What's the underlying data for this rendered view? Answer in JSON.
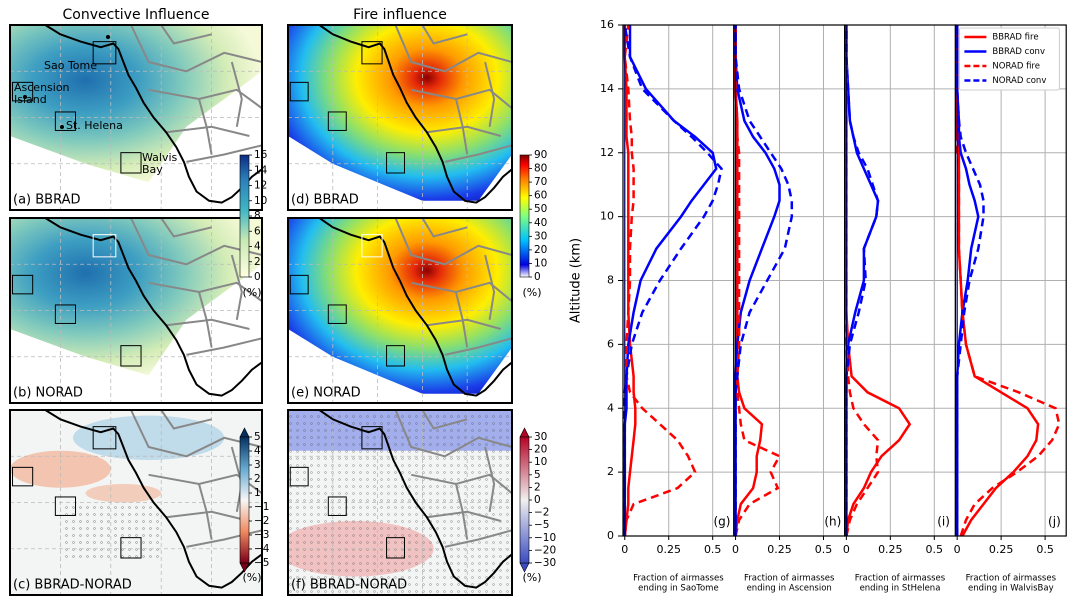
{
  "maps": {
    "column_titles": [
      "Convective Influence",
      "Fire influence"
    ],
    "panels": [
      {
        "label": "(a) BBRAD"
      },
      {
        "label": "(d) BBRAD"
      },
      {
        "label": "(b) NORAD"
      },
      {
        "label": "(e) NORAD"
      },
      {
        "label": "(c) BBRAD-NORAD"
      },
      {
        "label": "(f) BBRAD-NORAD"
      }
    ],
    "places": [
      {
        "lines": [
          "Sao Tome"
        ]
      },
      {
        "lines": [
          "Ascension",
          "Island"
        ]
      },
      {
        "lines": [
          "St. Helena"
        ]
      },
      {
        "lines": [
          "Walvis",
          "Bay"
        ]
      }
    ],
    "colorbars": [
      {
        "ticks": [
          0,
          2,
          4,
          6,
          8,
          10,
          12,
          14,
          16
        ],
        "unit": "(%)"
      },
      {
        "ticks": [
          0,
          10,
          20,
          30,
          40,
          50,
          60,
          70,
          80,
          90
        ],
        "unit": "(%)"
      },
      {
        "ticks": [
          {
            "value": -5,
            "label": "−5"
          },
          {
            "value": -4,
            "label": "−4"
          },
          {
            "value": -3,
            "label": "−3"
          },
          {
            "value": -2,
            "label": "−2"
          },
          {
            "value": -1,
            "label": "−1"
          },
          1,
          2,
          3,
          4,
          5
        ],
        "unit": "(%)"
      },
      {
        "ticks": [
          {
            "value": -30,
            "label": "−30"
          },
          {
            "value": -20,
            "label": "−20"
          },
          {
            "value": -10,
            "label": "−10"
          },
          {
            "value": -5,
            "label": "−5"
          },
          {
            "value": -2,
            "label": "−2"
          },
          0,
          2,
          5,
          10,
          20,
          30
        ],
        "unit": "(%)"
      }
    ]
  },
  "chart_data": {
    "type": "line",
    "ylabel": "Altitude (km)",
    "ylim": [
      0,
      16
    ],
    "yticks": [
      0,
      2,
      4,
      6,
      8,
      10,
      12,
      14,
      16
    ],
    "xlim": [
      -0.01,
      0.62
    ],
    "xticks": [
      0,
      0.25,
      0.5
    ],
    "grid": true,
    "legend": "upper right",
    "altitudes": [
      0,
      0.5,
      1,
      1.5,
      2,
      2.5,
      3,
      3.5,
      4,
      4.5,
      5,
      6,
      7,
      8,
      9,
      10,
      10.5,
      11,
      11.5,
      12,
      12.5,
      13,
      14,
      15,
      16
    ],
    "series": [
      {
        "name": "BBRAD fire",
        "color": "#ff0000",
        "dash": false
      },
      {
        "name": "BBRAD conv",
        "color": "#0000ff",
        "dash": false
      },
      {
        "name": "NORAD fire",
        "color": "#ff0000",
        "dash": true
      },
      {
        "name": "NORAD conv",
        "color": "#0000ff",
        "dash": true
      }
    ],
    "panels": [
      {
        "letter": "(g)",
        "xlabel": [
          "Fraction of airmasses",
          "ending in SaoTome"
        ],
        "series": [
          {
            "values": [
              0,
              0.01,
              0.02,
              0.02,
              0.03,
              0.04,
              0.05,
              0.06,
              0.06,
              0.05,
              0.05,
              0.03,
              0.02,
              0.02,
              0.02,
              0.02,
              0.02,
              0.02,
              0.02,
              0.02,
              0.01,
              0.01,
              0.01,
              0,
              0
            ]
          },
          {
            "values": [
              0,
              0,
              0,
              0,
              0,
              0,
              0,
              0,
              0.01,
              0.01,
              0.01,
              0.02,
              0.05,
              0.09,
              0.18,
              0.32,
              0.38,
              0.45,
              0.52,
              0.5,
              0.4,
              0.28,
              0.12,
              0.03,
              0.03
            ]
          },
          {
            "values": [
              0,
              0.01,
              0.05,
              0.3,
              0.4,
              0.36,
              0.3,
              0.2,
              0.1,
              0.03,
              0.01,
              0.01,
              0.02,
              0.03,
              0.03,
              0.04,
              0.05,
              0.05,
              0.05,
              0.04,
              0.04,
              0.03,
              0.02,
              0,
              0.02
            ]
          },
          {
            "values": [
              0,
              0,
              0,
              0,
              0,
              0,
              0,
              0,
              0,
              0,
              0.01,
              0.04,
              0.1,
              0.2,
              0.32,
              0.45,
              0.5,
              0.53,
              0.55,
              0.47,
              0.38,
              0.28,
              0.1,
              0.03,
              0
            ]
          }
        ]
      },
      {
        "letter": "(h)",
        "xlabel": [
          "Fraction of airmasses",
          "ending in Ascension"
        ],
        "series": [
          {
            "values": [
              0,
              0.01,
              0.03,
              0.1,
              0.12,
              0.12,
              0.14,
              0.15,
              0.05,
              0.02,
              0.01,
              0.01,
              0.01,
              0.01,
              0.01,
              0.01,
              0.01,
              0.01,
              0.01,
              0.01,
              0.01,
              0.01,
              0,
              0,
              0
            ]
          },
          {
            "values": [
              0,
              0,
              0,
              0,
              0,
              0,
              0,
              0,
              0,
              0,
              0,
              0.01,
              0.03,
              0.08,
              0.15,
              0.22,
              0.25,
              0.25,
              0.22,
              0.17,
              0.1,
              0.05,
              0.01,
              0,
              0
            ]
          },
          {
            "values": [
              0,
              0.02,
              0.08,
              0.24,
              0.2,
              0.25,
              0.05,
              0.03,
              0.02,
              0.01,
              0.01,
              0.02,
              0.02,
              0.02,
              0.02,
              0.02,
              0.02,
              0.02,
              0.02,
              0.02,
              0.01,
              0.01,
              0,
              0,
              0
            ]
          },
          {
            "values": [
              0,
              0,
              0,
              0,
              0,
              0,
              0,
              0,
              0,
              0,
              0.01,
              0.03,
              0.08,
              0.18,
              0.28,
              0.32,
              0.32,
              0.3,
              0.26,
              0.2,
              0.14,
              0.08,
              0.02,
              0,
              0
            ]
          }
        ]
      },
      {
        "letter": "(i)",
        "xlabel": [
          "Fraction of airmasses",
          "ending in StHelena"
        ],
        "series": [
          {
            "values": [
              0,
              0.01,
              0.04,
              0.1,
              0.14,
              0.2,
              0.3,
              0.36,
              0.3,
              0.12,
              0.03,
              0.01,
              0,
              0,
              0,
              0,
              0,
              0,
              0,
              0,
              0,
              0,
              0,
              0,
              0
            ]
          },
          {
            "values": [
              0,
              0,
              0,
              0,
              0,
              0,
              0,
              0,
              0,
              0,
              0,
              0.01,
              0.05,
              0.1,
              0.1,
              0.17,
              0.18,
              0.14,
              0.1,
              0.06,
              0.04,
              0.02,
              0.01,
              0,
              0
            ]
          },
          {
            "values": [
              0,
              0.02,
              0.06,
              0.12,
              0.18,
              0.17,
              0.18,
              0.1,
              0.04,
              0.02,
              0.01,
              0,
              0,
              0,
              0,
              0,
              0,
              0,
              0,
              0,
              0,
              0,
              0,
              0,
              0
            ]
          },
          {
            "values": [
              0,
              0,
              0,
              0,
              0,
              0,
              0,
              0,
              0,
              0,
              0,
              0.02,
              0.07,
              0.11,
              0.1,
              0.17,
              0.18,
              0.15,
              0.12,
              0.07,
              0.04,
              0.02,
              0.01,
              0,
              0
            ]
          }
        ]
      },
      {
        "letter": "(j)",
        "xlabel": [
          "Fraction of airmasses",
          "ending in WalvisBay"
        ],
        "series": [
          {
            "values": [
              0.03,
              0.08,
              0.15,
              0.22,
              0.32,
              0.4,
              0.45,
              0.46,
              0.4,
              0.25,
              0.1,
              0.05,
              0.03,
              0.02,
              0.01,
              0.01,
              0.01,
              0.01,
              0.01,
              0.01,
              0,
              0,
              0,
              0,
              0
            ]
          },
          {
            "values": [
              0,
              0,
              0,
              0,
              0,
              0,
              0,
              0,
              0,
              0,
              0,
              0.01,
              0.03,
              0.06,
              0.08,
              0.12,
              0.1,
              0.07,
              0.05,
              0.02,
              0.01,
              0.01,
              0,
              0,
              0
            ]
          },
          {
            "values": [
              0.02,
              0.05,
              0.1,
              0.2,
              0.34,
              0.46,
              0.54,
              0.58,
              0.56,
              0.35,
              0.1,
              0.05,
              0.03,
              0.02,
              0.01,
              0.01,
              0.01,
              0.01,
              0.01,
              0,
              0,
              0,
              0,
              0,
              0
            ]
          },
          {
            "values": [
              0,
              0,
              0,
              0,
              0,
              0,
              0,
              0,
              0,
              0,
              0,
              0.02,
              0.04,
              0.07,
              0.12,
              0.15,
              0.15,
              0.13,
              0.09,
              0.05,
              0.02,
              0.01,
              0,
              0,
              0
            ]
          }
        ]
      }
    ]
  }
}
